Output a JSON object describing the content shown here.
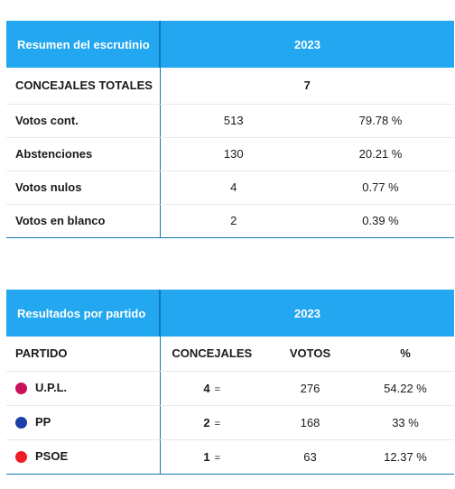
{
  "summary": {
    "header_label": "Resumen del escrutinio",
    "header_year": "2023",
    "total_label": "CONCEJALES TOTALES",
    "total_value": "7",
    "rows": [
      {
        "label": "Votos cont.",
        "count": "513",
        "pct": "79.78 %"
      },
      {
        "label": "Abstenciones",
        "count": "130",
        "pct": "20.21 %"
      },
      {
        "label": "Votos nulos",
        "count": "4",
        "pct": "0.77 %"
      },
      {
        "label": "Votos en blanco",
        "count": "2",
        "pct": "0.39 %"
      }
    ]
  },
  "results": {
    "header_label": "Resultados por partido",
    "header_year": "2023",
    "columns": {
      "party": "PARTIDO",
      "seats": "CONCEJALES",
      "votes": "VOTOS",
      "pct": "%"
    },
    "parties": [
      {
        "name": "U.P.L.",
        "seats": "4",
        "change": "=",
        "votes": "276",
        "pct": "54.22 %",
        "color": "#c8105c"
      },
      {
        "name": "PP",
        "seats": "2",
        "change": "=",
        "votes": "168",
        "pct": "33 %",
        "color": "#1a3fa8"
      },
      {
        "name": "PSOE",
        "seats": "1",
        "change": "=",
        "votes": "63",
        "pct": "12.37 %",
        "color": "#ee1c25"
      }
    ]
  }
}
